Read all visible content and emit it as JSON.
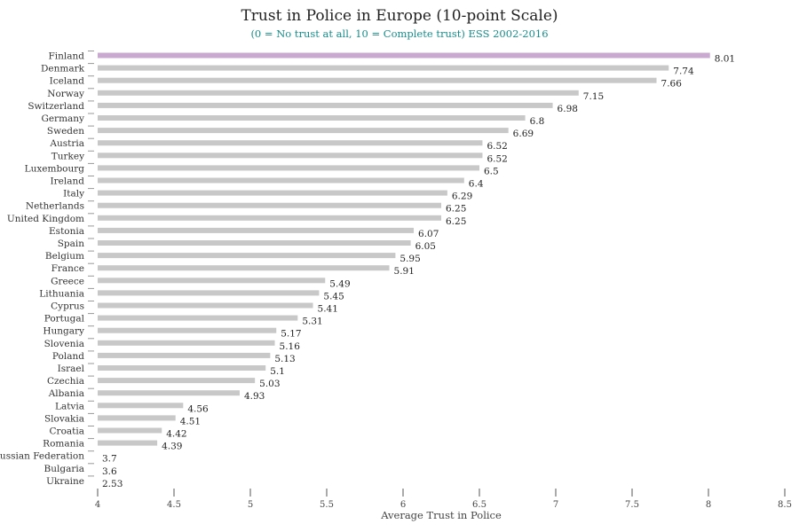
{
  "chart_data": {
    "type": "bar",
    "orientation": "horizontal",
    "title": "Trust in Police in Europe (10-point Scale)",
    "subtitle": "(0 = No trust at all, 10 = Complete trust) ESS 2002-2016",
    "xlabel": "Average Trust in Police",
    "ylabel": "",
    "xlim": [
      4,
      8.5
    ],
    "x_ticks": [
      "4",
      "4.5",
      "5",
      "5.5",
      "6",
      "6.5",
      "7",
      "7.5",
      "8",
      "8.5"
    ],
    "categories": [
      "Finland",
      "Denmark",
      "Iceland",
      "Norway",
      "Switzerland",
      "Germany",
      "Sweden",
      "Austria",
      "Turkey",
      "Luxembourg",
      "Ireland",
      "Italy",
      "Netherlands",
      "United Kingdom",
      "Estonia",
      "Spain",
      "Belgium",
      "France",
      "Greece",
      "Lithuania",
      "Cyprus",
      "Portugal",
      "Hungary",
      "Slovenia",
      "Poland",
      "Israel",
      "Czechia",
      "Albania",
      "Latvia",
      "Slovakia",
      "Croatia",
      "Romania",
      "Russian Federation",
      "Bulgaria",
      "Ukraine"
    ],
    "values": [
      8.01,
      7.74,
      7.66,
      7.15,
      6.98,
      6.8,
      6.69,
      6.52,
      6.52,
      6.5,
      6.4,
      6.29,
      6.25,
      6.25,
      6.07,
      6.05,
      5.95,
      5.91,
      5.49,
      5.45,
      5.41,
      5.31,
      5.17,
      5.16,
      5.13,
      5.1,
      5.03,
      4.93,
      4.56,
      4.51,
      4.42,
      4.39,
      3.7,
      3.6,
      2.53
    ],
    "value_labels": [
      "8.01",
      "7.74",
      "7.66",
      "7.15",
      "6.98",
      "6.8",
      "6.69",
      "6.52",
      "6.52",
      "6.5",
      "6.4",
      "6.29",
      "6.25",
      "6.25",
      "6.07",
      "6.05",
      "5.95",
      "5.91",
      "5.49",
      "5.45",
      "5.41",
      "5.31",
      "5.17",
      "5.16",
      "5.13",
      "5.1",
      "5.03",
      "4.93",
      "4.56",
      "4.51",
      "4.42",
      "4.39",
      "3.7",
      "3.6",
      "2.53"
    ],
    "colors": {
      "bar": "#c8c8c8",
      "highlight": "#c9a9cf",
      "axis": "#555555",
      "subtitle": "#1b8c8c"
    },
    "highlight_category": "Finland",
    "grid": false
  }
}
